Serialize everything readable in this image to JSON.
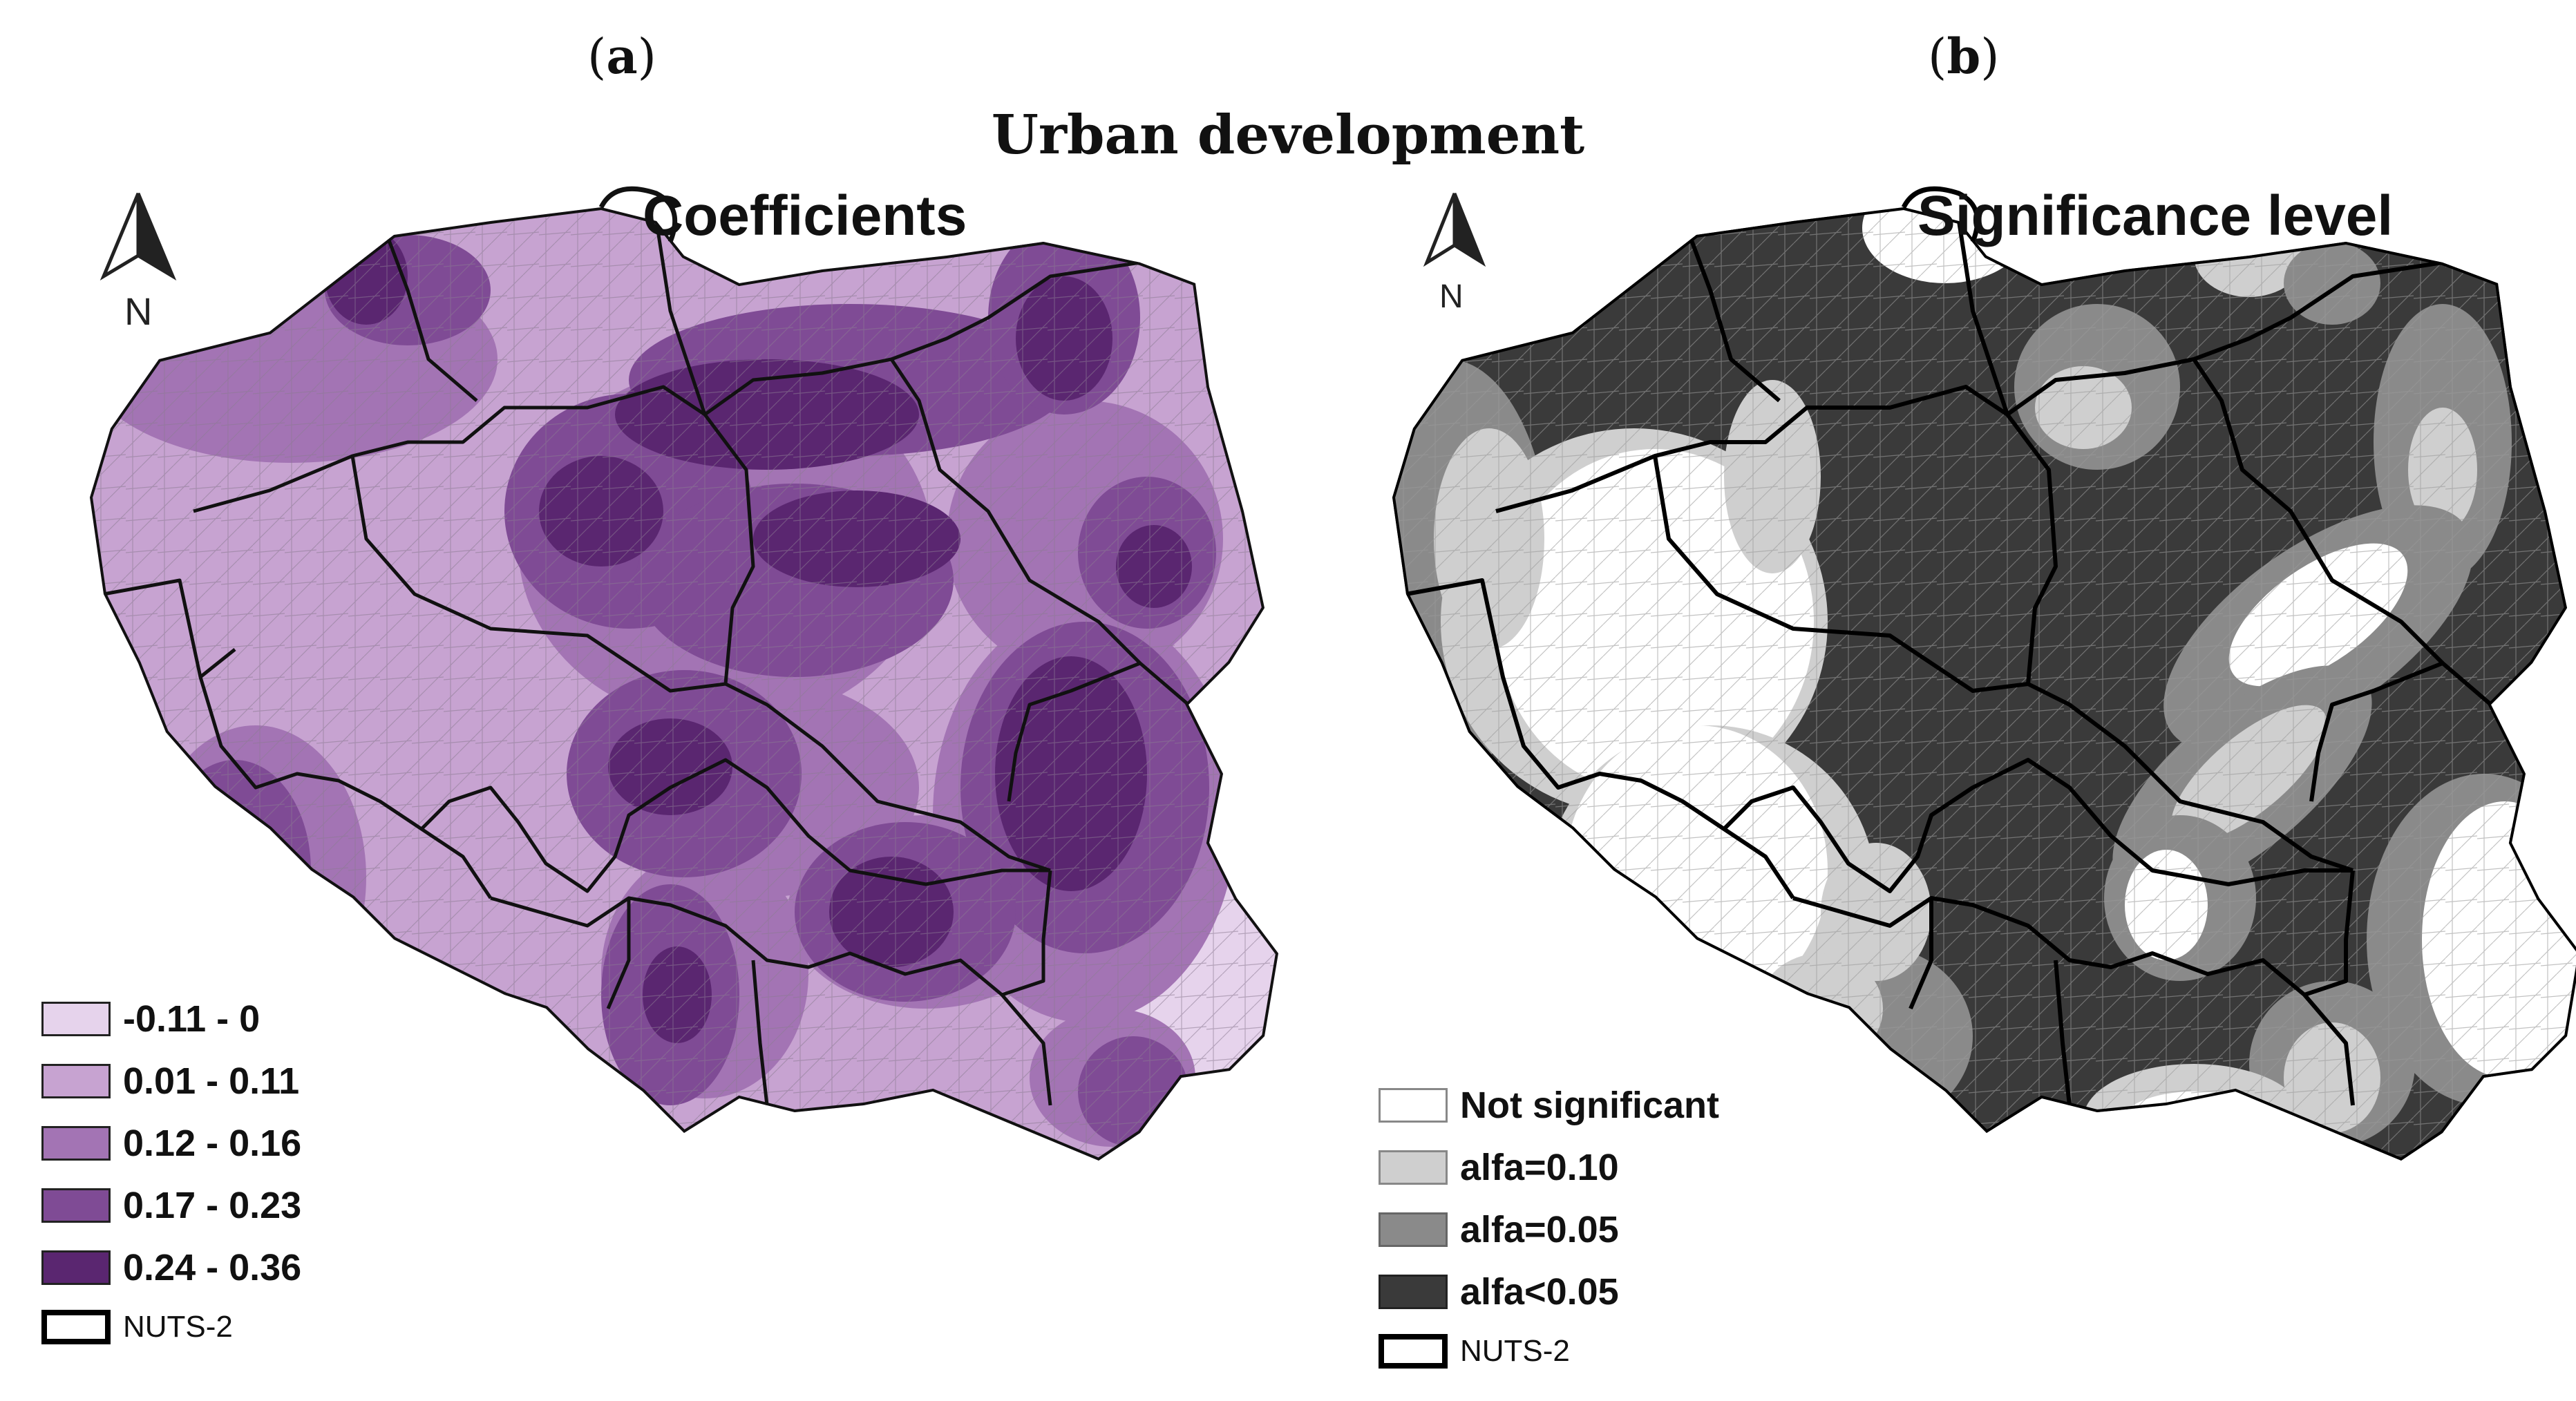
{
  "figure_title": "Urban development",
  "panel_a": {
    "letter": "a",
    "title": "Coefficients",
    "north_label": "N",
    "legend": [
      {
        "label": "-0.11 - 0",
        "color": "#e6d3ec"
      },
      {
        "label": "0.01 - 0.11",
        "color": "#c7a3d1"
      },
      {
        "label": "0.12 - 0.16",
        "color": "#a374b4"
      },
      {
        "label": "0.17 - 0.23",
        "color": "#7f4b95"
      },
      {
        "label": "0.24 - 0.36",
        "color": "#5a2670"
      }
    ],
    "boundary_label": "NUTS-2"
  },
  "panel_b": {
    "letter": "b",
    "title": "Significance level",
    "north_label": "N",
    "legend": [
      {
        "label": "Not significant",
        "color": "#ffffff"
      },
      {
        "label": "alfa=0.10",
        "color": "#cfcfcf"
      },
      {
        "label": "alfa=0.05",
        "color": "#8a8a8a"
      },
      {
        "label": "alfa<0.05",
        "color": "#3a3a3a"
      }
    ],
    "boundary_label": "NUTS-2"
  }
}
